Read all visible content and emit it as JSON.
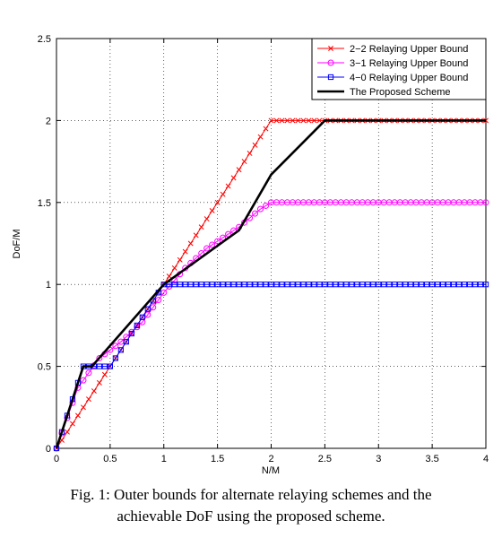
{
  "chart_data": {
    "type": "line",
    "xlabel": "N/M",
    "ylabel": "DoF/M",
    "xlim": [
      0,
      4
    ],
    "ylim": [
      0,
      2.5
    ],
    "xticks": [
      "0",
      "0.5",
      "1",
      "1.5",
      "2",
      "2.5",
      "3",
      "3.5",
      "4"
    ],
    "yticks": [
      "0",
      "0.5",
      "1",
      "1.5",
      "2",
      "2.5"
    ],
    "grid": true,
    "legend_position": "top-right",
    "series": [
      {
        "name": "2−2 Relaying Upper Bound",
        "color": "#ff0000",
        "marker": "x",
        "x": [
          0,
          1,
          2,
          4
        ],
        "y": [
          0,
          1,
          2,
          2
        ]
      },
      {
        "name": "3−1 Relaying Upper Bound",
        "color": "#ff00ff",
        "marker": "circle",
        "x": [
          0,
          0.2,
          0.4,
          0.6,
          0.8,
          1.0,
          1.2,
          1.4,
          1.7,
          1.9,
          2.0,
          2.1,
          4
        ],
        "y": [
          0,
          0.37,
          0.55,
          0.65,
          0.77,
          0.95,
          1.1,
          1.22,
          1.35,
          1.46,
          1.5,
          1.5,
          1.5
        ]
      },
      {
        "name": "4−0 Relaying Upper Bound",
        "color": "#0000ff",
        "marker": "square",
        "x": [
          0,
          0.25,
          0.5,
          1.0,
          1.2,
          4
        ],
        "y": [
          0,
          0.5,
          0.5,
          1.0,
          1.0,
          1.0
        ]
      },
      {
        "name": "The Proposed Scheme",
        "color": "#000000",
        "marker": "none",
        "x": [
          0,
          0.25,
          0.33,
          1.0,
          1.7,
          2.0,
          2.5,
          4
        ],
        "y": [
          0,
          0.5,
          0.5,
          1.0,
          1.33,
          1.67,
          2.0,
          2.0
        ]
      }
    ]
  },
  "caption": {
    "line1": "Fig. 1: Outer bounds for alternate relaying schemes and the",
    "line2": "achievable DoF using the proposed scheme."
  }
}
